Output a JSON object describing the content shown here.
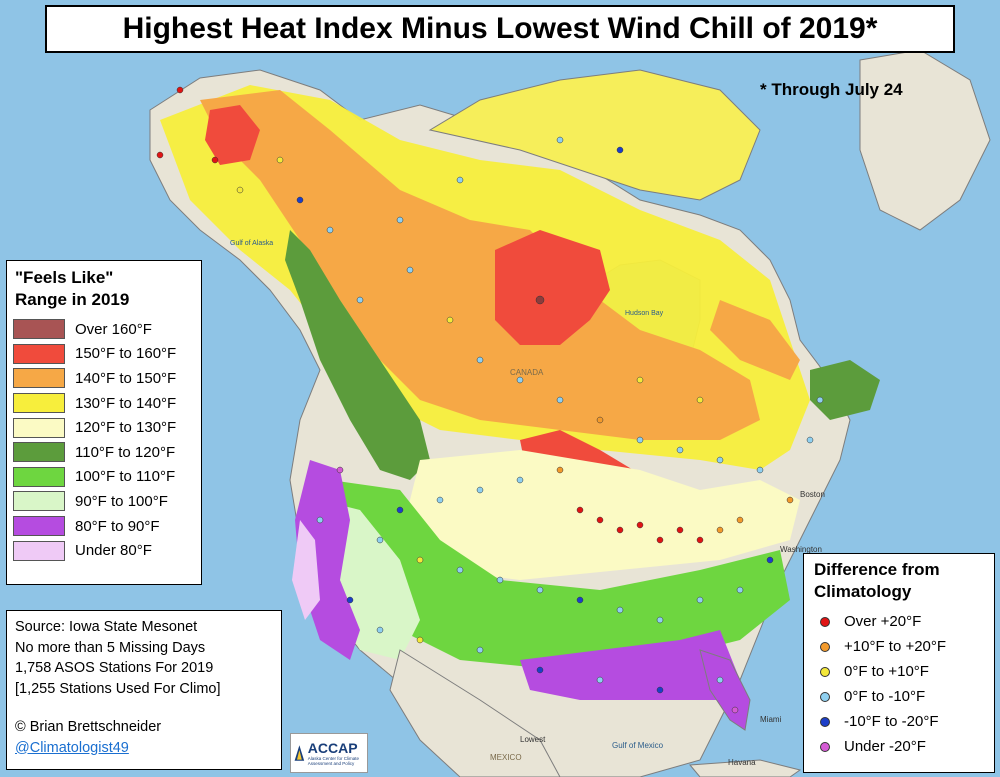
{
  "title": "Highest Heat Index Minus Lowest Wind Chill of 2019*",
  "footnote": "* Through July 24",
  "legend": {
    "title_line1": "\"Feels Like\"",
    "title_line2": "Range in 2019",
    "items": [
      {
        "label": "Over 160°F",
        "color": "#a85454"
      },
      {
        "label": "150°F to 160°F",
        "color": "#f04b3c"
      },
      {
        "label": "140°F to 150°F",
        "color": "#f6a846"
      },
      {
        "label": "130°F to 140°F",
        "color": "#f7ee3c"
      },
      {
        "label": "120°F to 130°F",
        "color": "#fbfac4"
      },
      {
        "label": "110°F to 120°F",
        "color": "#5c9c3c"
      },
      {
        "label": "100°F to 110°F",
        "color": "#6ed640"
      },
      {
        "label": "90°F to 100°F",
        "color": "#d9f6c8"
      },
      {
        "label": "80°F to 90°F",
        "color": "#b54ce0"
      },
      {
        "label": "Under 80°F",
        "color": "#efcaf6"
      }
    ]
  },
  "source": {
    "lines": [
      "Source: Iowa State Mesonet",
      "No more than 5 Missing Days",
      "1,758 ASOS Stations For 2019",
      "[1,255 Stations Used For Climo]"
    ],
    "author": "© Brian Brettschneider",
    "twitter": "@Climatologist49"
  },
  "logo": {
    "name": "ACCAP",
    "subtitle": "Alaska Center for Climate Assessment and Policy"
  },
  "difference": {
    "title_line1": "Difference from",
    "title_line2": "Climatology",
    "items": [
      {
        "label": "Over +20°F",
        "color": "#e01414"
      },
      {
        "label": "+10°F to +20°F",
        "color": "#f39a2c"
      },
      {
        "label": "0°F to +10°F",
        "color": "#f4e83a"
      },
      {
        "label": "0°F to -10°F",
        "color": "#8fd0f0"
      },
      {
        "label": "-10°F to -20°F",
        "color": "#1c3ec8"
      },
      {
        "label": "Under -20°F",
        "color": "#d45ad4"
      }
    ]
  },
  "places": [
    "Gulf of Alaska",
    "Hudson Bay",
    "CANADA",
    "Boston",
    "Washington",
    "MEXICO",
    "Gulf of Mexico",
    "Havana",
    "Miami",
    "Lowest"
  ],
  "colors": {
    "ocean": "#8fc4e6",
    "land": "#e8e4d6"
  }
}
